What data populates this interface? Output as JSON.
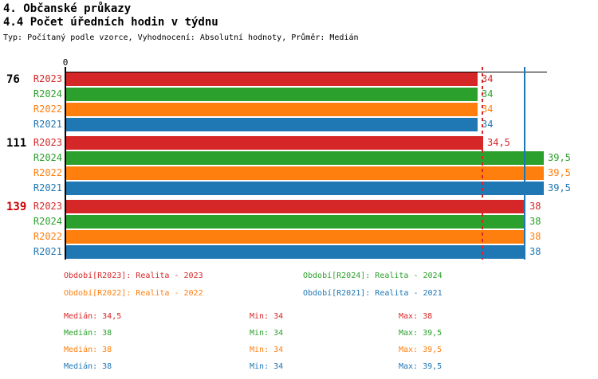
{
  "header": {
    "title_line1": "4. Občanské průkazy",
    "title_line2": "4.4 Počet úředních hodin v týdnu",
    "meta_line": "Typ: Počítaný podle vzorce, Vyhodnocení: Absolutní hodnoty, Průměr: Medián"
  },
  "series_colors": {
    "R2023": "#d62728",
    "R2024": "#2ca02c",
    "R2022": "#ff7f0e",
    "R2021": "#1f77b4"
  },
  "chart_data": {
    "type": "bar",
    "orientation": "horizontal",
    "title": "4.4 Počet úředních hodin v týdnu",
    "xlim": [
      0,
      39.9
    ],
    "x_zero_label": "0",
    "grid": false,
    "series_order": [
      "R2023",
      "R2024",
      "R2022",
      "R2021"
    ],
    "groups": [
      {
        "label": "76",
        "label_color": "#000000",
        "bars": [
          {
            "series": "R2023",
            "value": 34,
            "label": "34"
          },
          {
            "series": "R2024",
            "value": 34,
            "label": "34"
          },
          {
            "series": "R2022",
            "value": 34,
            "label": "34"
          },
          {
            "series": "R2021",
            "value": 34,
            "label": "34"
          }
        ]
      },
      {
        "label": "111",
        "label_color": "#000000",
        "bars": [
          {
            "series": "R2023",
            "value": 34.5,
            "label": "34,5"
          },
          {
            "series": "R2024",
            "value": 39.5,
            "label": "39,5"
          },
          {
            "series": "R2022",
            "value": 39.5,
            "label": "39,5"
          },
          {
            "series": "R2021",
            "value": 39.5,
            "label": "39,5"
          }
        ]
      },
      {
        "label": "139",
        "label_color": "#cc0000",
        "bars": [
          {
            "series": "R2023",
            "value": 38,
            "label": "38"
          },
          {
            "series": "R2024",
            "value": 38,
            "label": "38"
          },
          {
            "series": "R2022",
            "value": 38,
            "label": "38"
          },
          {
            "series": "R2021",
            "value": 38,
            "label": "38"
          }
        ]
      }
    ],
    "marker_lines": [
      {
        "value": 34.5,
        "series": "R2023",
        "color": "#d62728",
        "style": "dashed"
      },
      {
        "value": 38,
        "series": "R2021",
        "color": "#1f77b4",
        "style": "solid"
      }
    ]
  },
  "legend": {
    "items": [
      {
        "series": "R2023",
        "text": "Období[R2023]: Realita - 2023"
      },
      {
        "series": "R2024",
        "text": "Období[R2024]: Realita - 2024"
      },
      {
        "series": "R2022",
        "text": "Období[R2022]: Realita - 2022"
      },
      {
        "series": "R2021",
        "text": "Období[R2021]: Realita - 2021"
      }
    ]
  },
  "stats": {
    "rows": [
      {
        "series": "R2023",
        "median": "Medián: 34,5",
        "min": "Min: 34",
        "max": "Max: 38"
      },
      {
        "series": "R2024",
        "median": "Medián: 38",
        "min": "Min: 34",
        "max": "Max: 39,5"
      },
      {
        "series": "R2022",
        "median": "Medián: 38",
        "min": "Min: 34",
        "max": "Max: 39,5"
      },
      {
        "series": "R2021",
        "median": "Medián: 38",
        "min": "Min: 34",
        "max": "Max: 39,5"
      }
    ]
  }
}
